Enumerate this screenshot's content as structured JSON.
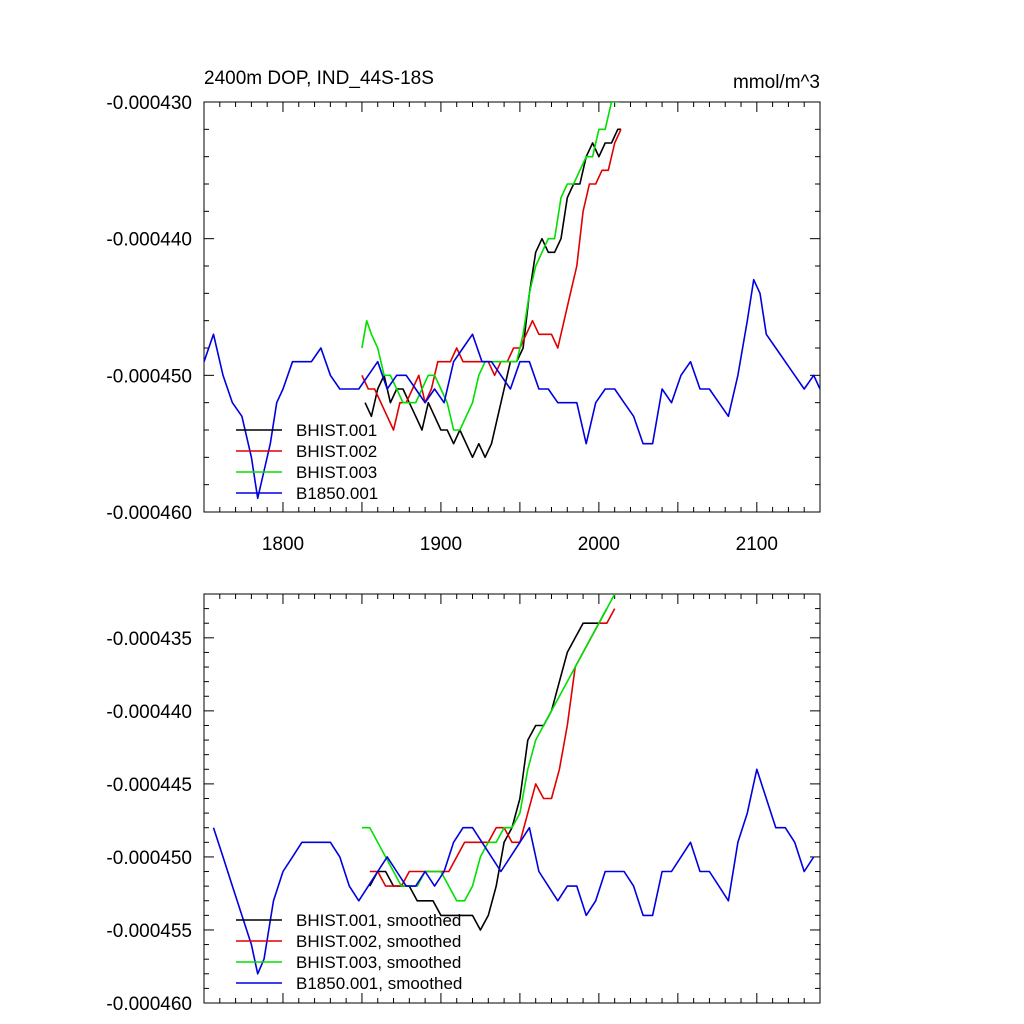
{
  "figure": {
    "title_left": "2400m DOP, IND_44S-18S",
    "title_right": "mmol/m^3"
  },
  "chart_data": [
    {
      "type": "line",
      "title": "2400m DOP, IND_44S-18S",
      "units": "mmol/m^3",
      "xlim": [
        1750,
        2140
      ],
      "ylim": [
        -0.00046,
        -0.00043
      ],
      "xticks": [
        1800,
        1900,
        2000,
        2100
      ],
      "xtick_labels": [
        "1800",
        "1900",
        "2000",
        "2100"
      ],
      "yticks": [
        -0.00046,
        -0.00045,
        -0.00044,
        -0.00043
      ],
      "ytick_labels": [
        "-0.000460",
        "-0.000450",
        "-0.000440",
        "-0.000430"
      ],
      "grid": false,
      "legend_position": "bottom-left",
      "series": [
        {
          "name": "BHIST.001",
          "color": "#000000",
          "x": [
            1852,
            1856,
            1860,
            1864,
            1868,
            1872,
            1876,
            1880,
            1884,
            1888,
            1892,
            1896,
            1900,
            1904,
            1908,
            1912,
            1916,
            1920,
            1924,
            1928,
            1932,
            1936,
            1940,
            1944,
            1948,
            1952,
            1956,
            1960,
            1964,
            1968,
            1972,
            1976,
            1980,
            1984,
            1988,
            1992,
            1996,
            2000,
            2004,
            2008,
            2012,
            2014
          ],
          "y": [
            -0.000452,
            -0.000453,
            -0.000451,
            -0.00045,
            -0.000452,
            -0.000451,
            -0.000451,
            -0.000452,
            -0.000453,
            -0.000454,
            -0.000452,
            -0.000453,
            -0.000454,
            -0.000454,
            -0.000455,
            -0.000454,
            -0.000455,
            -0.000456,
            -0.000455,
            -0.000456,
            -0.000455,
            -0.000453,
            -0.000451,
            -0.000449,
            -0.000449,
            -0.000448,
            -0.000444,
            -0.000441,
            -0.00044,
            -0.000441,
            -0.000441,
            -0.00044,
            -0.000437,
            -0.000436,
            -0.000436,
            -0.000434,
            -0.000433,
            -0.000434,
            -0.000433,
            -0.000433,
            -0.000432,
            -0.000432
          ]
        },
        {
          "name": "BHIST.002",
          "color": "#e00000",
          "x": [
            1850,
            1854,
            1858,
            1862,
            1866,
            1870,
            1874,
            1878,
            1882,
            1886,
            1890,
            1894,
            1898,
            1902,
            1906,
            1910,
            1914,
            1918,
            1922,
            1926,
            1930,
            1934,
            1938,
            1942,
            1946,
            1950,
            1954,
            1958,
            1962,
            1966,
            1970,
            1974,
            1978,
            1982,
            1986,
            1990,
            1994,
            1998,
            2002,
            2006,
            2010,
            2014
          ],
          "y": [
            -0.00045,
            -0.000451,
            -0.000451,
            -0.000452,
            -0.000453,
            -0.000454,
            -0.000452,
            -0.000452,
            -0.000451,
            -0.00045,
            -0.000452,
            -0.000451,
            -0.000449,
            -0.000449,
            -0.000449,
            -0.000448,
            -0.000449,
            -0.000449,
            -0.000449,
            -0.000449,
            -0.000449,
            -0.00045,
            -0.000449,
            -0.000449,
            -0.000448,
            -0.000448,
            -0.000447,
            -0.000446,
            -0.000447,
            -0.000447,
            -0.000447,
            -0.000448,
            -0.000446,
            -0.000444,
            -0.000442,
            -0.000438,
            -0.000436,
            -0.000436,
            -0.000435,
            -0.000435,
            -0.000433,
            -0.000432
          ]
        },
        {
          "name": "BHIST.003",
          "color": "#00e000",
          "x": [
            1850,
            1853,
            1856,
            1860,
            1864,
            1868,
            1872,
            1876,
            1880,
            1884,
            1888,
            1892,
            1896,
            1900,
            1904,
            1908,
            1912,
            1916,
            1920,
            1924,
            1928,
            1932,
            1936,
            1940,
            1944,
            1948,
            1952,
            1956,
            1960,
            1964,
            1968,
            1972,
            1976,
            1980,
            1984,
            1988,
            1992,
            1996,
            2000,
            2004,
            2008,
            2010,
            2013
          ],
          "y": [
            -0.000448,
            -0.000446,
            -0.000447,
            -0.000448,
            -0.00045,
            -0.00045,
            -0.000451,
            -0.000452,
            -0.000452,
            -0.000452,
            -0.000451,
            -0.00045,
            -0.00045,
            -0.000451,
            -0.000452,
            -0.000454,
            -0.000454,
            -0.000453,
            -0.000452,
            -0.00045,
            -0.000449,
            -0.000449,
            -0.000449,
            -0.000449,
            -0.000449,
            -0.000449,
            -0.000447,
            -0.000444,
            -0.000442,
            -0.000441,
            -0.00044,
            -0.00044,
            -0.000437,
            -0.000436,
            -0.000436,
            -0.000435,
            -0.000434,
            -0.000434,
            -0.000432,
            -0.000432,
            -0.00043,
            -0.00043,
            -0.00043
          ]
        },
        {
          "name": "B1850.001",
          "color": "#0000e0",
          "x": [
            1750,
            1756,
            1762,
            1768,
            1774,
            1780,
            1784,
            1788,
            1792,
            1796,
            1800,
            1806,
            1812,
            1818,
            1824,
            1830,
            1836,
            1842,
            1848,
            1854,
            1860,
            1866,
            1872,
            1878,
            1884,
            1890,
            1896,
            1902,
            1908,
            1914,
            1920,
            1926,
            1932,
            1938,
            1944,
            1950,
            1956,
            1962,
            1968,
            1974,
            1980,
            1986,
            1992,
            1998,
            2004,
            2010,
            2016,
            2022,
            2028,
            2034,
            2040,
            2046,
            2052,
            2058,
            2064,
            2070,
            2076,
            2082,
            2088,
            2094,
            2098,
            2102,
            2106,
            2112,
            2118,
            2124,
            2130,
            2136,
            2140
          ],
          "y": [
            -0.000449,
            -0.000447,
            -0.00045,
            -0.000452,
            -0.000453,
            -0.000456,
            -0.000459,
            -0.000457,
            -0.000455,
            -0.000452,
            -0.000451,
            -0.000449,
            -0.000449,
            -0.000449,
            -0.000448,
            -0.00045,
            -0.000451,
            -0.000451,
            -0.000451,
            -0.00045,
            -0.000449,
            -0.000451,
            -0.00045,
            -0.00045,
            -0.000451,
            -0.000452,
            -0.000451,
            -0.000452,
            -0.000449,
            -0.000448,
            -0.000447,
            -0.000449,
            -0.000449,
            -0.00045,
            -0.000451,
            -0.000449,
            -0.000449,
            -0.000451,
            -0.000451,
            -0.000452,
            -0.000452,
            -0.000452,
            -0.000455,
            -0.000452,
            -0.000451,
            -0.000451,
            -0.000452,
            -0.000453,
            -0.000455,
            -0.000455,
            -0.000451,
            -0.000452,
            -0.00045,
            -0.000449,
            -0.000451,
            -0.000451,
            -0.000452,
            -0.000453,
            -0.00045,
            -0.000446,
            -0.000443,
            -0.000444,
            -0.000447,
            -0.000448,
            -0.000449,
            -0.00045,
            -0.000451,
            -0.00045,
            -0.000451
          ]
        }
      ]
    },
    {
      "type": "line",
      "xlim": [
        1750,
        2140
      ],
      "ylim": [
        -0.00046,
        -0.000432
      ],
      "xticks": [
        1800,
        1900,
        2000,
        2100
      ],
      "yticks": [
        -0.00046,
        -0.000455,
        -0.00045,
        -0.000445,
        -0.00044,
        -0.000435
      ],
      "ytick_labels": [
        "-0.000460",
        "-0.000455",
        "-0.000450",
        "-0.000445",
        "-0.000440",
        "-0.000435"
      ],
      "grid": false,
      "legend_position": "bottom-left",
      "series": [
        {
          "name": "BHIST.001, smoothed",
          "color": "#000000",
          "x": [
            1855,
            1860,
            1865,
            1870,
            1875,
            1880,
            1885,
            1890,
            1895,
            1900,
            1905,
            1910,
            1915,
            1920,
            1925,
            1930,
            1935,
            1940,
            1945,
            1950,
            1955,
            1960,
            1965,
            1970,
            1975,
            1980,
            1985,
            1990,
            1995,
            2000,
            2005
          ],
          "y": [
            -0.000452,
            -0.000451,
            -0.000451,
            -0.000452,
            -0.000452,
            -0.000452,
            -0.000453,
            -0.000453,
            -0.000453,
            -0.000454,
            -0.000454,
            -0.000454,
            -0.000454,
            -0.000454,
            -0.000455,
            -0.000454,
            -0.000452,
            -0.000449,
            -0.000448,
            -0.000446,
            -0.000442,
            -0.000441,
            -0.000441,
            -0.00044,
            -0.000438,
            -0.000436,
            -0.000435,
            -0.000434,
            -0.000434,
            -0.000434,
            -0.000433
          ]
        },
        {
          "name": "BHIST.002, smoothed",
          "color": "#e00000",
          "x": [
            1855,
            1860,
            1865,
            1870,
            1875,
            1880,
            1885,
            1890,
            1895,
            1900,
            1905,
            1910,
            1915,
            1920,
            1925,
            1930,
            1935,
            1940,
            1945,
            1950,
            1955,
            1960,
            1965,
            1970,
            1975,
            1980,
            1985,
            1990,
            1995,
            2000,
            2005,
            2010
          ],
          "y": [
            -0.000451,
            -0.000451,
            -0.000452,
            -0.000452,
            -0.000452,
            -0.000451,
            -0.000451,
            -0.000451,
            -0.000451,
            -0.000451,
            -0.000451,
            -0.00045,
            -0.000449,
            -0.000449,
            -0.000449,
            -0.000449,
            -0.000448,
            -0.000448,
            -0.000449,
            -0.000449,
            -0.000447,
            -0.000445,
            -0.000446,
            -0.000446,
            -0.000444,
            -0.000441,
            -0.000437,
            -0.000436,
            -0.000435,
            -0.000434,
            -0.000434,
            -0.000433
          ]
        },
        {
          "name": "BHIST.003, smoothed",
          "color": "#00e000",
          "x": [
            1850,
            1855,
            1860,
            1865,
            1870,
            1875,
            1880,
            1885,
            1890,
            1895,
            1900,
            1905,
            1910,
            1915,
            1920,
            1925,
            1930,
            1935,
            1940,
            1945,
            1950,
            1955,
            1960,
            1965,
            1970,
            1975,
            1980,
            1985,
            1990,
            1995,
            2000,
            2005,
            2010
          ],
          "y": [
            -0.000448,
            -0.000448,
            -0.000449,
            -0.00045,
            -0.000451,
            -0.000452,
            -0.000452,
            -0.000452,
            -0.000451,
            -0.000451,
            -0.000451,
            -0.000452,
            -0.000453,
            -0.000453,
            -0.000452,
            -0.00045,
            -0.000449,
            -0.000449,
            -0.000448,
            -0.000448,
            -0.000447,
            -0.000444,
            -0.000442,
            -0.000441,
            -0.00044,
            -0.000439,
            -0.000438,
            -0.000437,
            -0.000436,
            -0.000435,
            -0.000434,
            -0.000433,
            -0.000432
          ]
        },
        {
          "name": "B1850.001, smoothed",
          "color": "#0000e0",
          "x": [
            1756,
            1762,
            1768,
            1774,
            1780,
            1784,
            1788,
            1794,
            1800,
            1806,
            1812,
            1818,
            1824,
            1830,
            1836,
            1842,
            1848,
            1854,
            1860,
            1866,
            1872,
            1878,
            1884,
            1890,
            1896,
            1902,
            1908,
            1914,
            1920,
            1926,
            1932,
            1938,
            1944,
            1950,
            1956,
            1962,
            1968,
            1974,
            1980,
            1986,
            1992,
            1998,
            2004,
            2010,
            2016,
            2022,
            2028,
            2034,
            2040,
            2046,
            2052,
            2058,
            2064,
            2070,
            2076,
            2082,
            2088,
            2094,
            2100,
            2106,
            2112,
            2118,
            2124,
            2130,
            2136
          ],
          "y": [
            -0.000448,
            -0.00045,
            -0.000452,
            -0.000454,
            -0.000456,
            -0.000458,
            -0.000457,
            -0.000453,
            -0.000451,
            -0.00045,
            -0.000449,
            -0.000449,
            -0.000449,
            -0.000449,
            -0.00045,
            -0.000452,
            -0.000453,
            -0.000452,
            -0.000451,
            -0.00045,
            -0.000451,
            -0.000452,
            -0.000452,
            -0.000451,
            -0.000452,
            -0.000451,
            -0.000449,
            -0.000448,
            -0.000448,
            -0.000449,
            -0.00045,
            -0.000451,
            -0.00045,
            -0.000449,
            -0.000448,
            -0.000451,
            -0.000452,
            -0.000453,
            -0.000452,
            -0.000452,
            -0.000454,
            -0.000453,
            -0.000451,
            -0.000451,
            -0.000451,
            -0.000452,
            -0.000454,
            -0.000454,
            -0.000451,
            -0.000451,
            -0.00045,
            -0.000449,
            -0.000451,
            -0.000451,
            -0.000452,
            -0.000453,
            -0.000449,
            -0.000447,
            -0.000444,
            -0.000446,
            -0.000448,
            -0.000448,
            -0.000449,
            -0.000451,
            -0.00045
          ]
        }
      ]
    }
  ]
}
